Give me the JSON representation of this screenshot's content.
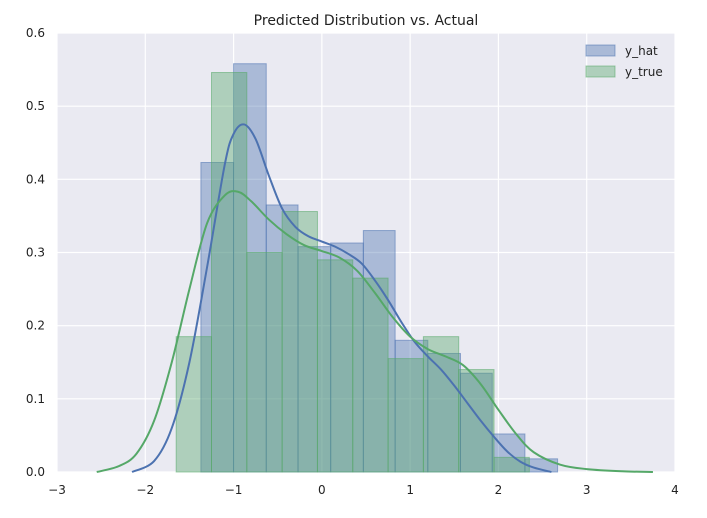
{
  "chart_data": {
    "type": "bar",
    "title": "Predicted Distribution vs. Actual",
    "xlabel": "",
    "ylabel": "",
    "xlim": [
      -3,
      4
    ],
    "ylim": [
      0,
      0.6
    ],
    "xticks": [
      -3,
      -2,
      -1,
      0,
      1,
      2,
      3,
      4
    ],
    "xtick_labels": [
      "−3",
      "−2",
      "−1",
      "0",
      "1",
      "2",
      "3",
      "4"
    ],
    "yticks": [
      0,
      0.1,
      0.2,
      0.3,
      0.4,
      0.5,
      0.6
    ],
    "ytick_labels": [
      "0.0",
      "0.1",
      "0.2",
      "0.3",
      "0.4",
      "0.5",
      "0.6"
    ],
    "grid": true,
    "legend_position": "top-right",
    "series": [
      {
        "name": "y_hat",
        "color": "#4c72b0",
        "bins": [
          {
            "x0": -1.37,
            "x1": -1.0,
            "y": 0.423
          },
          {
            "x0": -1.0,
            "x1": -0.63,
            "y": 0.558
          },
          {
            "x0": -0.63,
            "x1": -0.27,
            "y": 0.365
          },
          {
            "x0": -0.27,
            "x1": 0.1,
            "y": 0.308
          },
          {
            "x0": 0.1,
            "x1": 0.47,
            "y": 0.313
          },
          {
            "x0": 0.47,
            "x1": 0.83,
            "y": 0.33
          },
          {
            "x0": 0.83,
            "x1": 1.2,
            "y": 0.18
          },
          {
            "x0": 1.2,
            "x1": 1.57,
            "y": 0.162
          },
          {
            "x0": 1.57,
            "x1": 1.93,
            "y": 0.135
          },
          {
            "x0": 1.93,
            "x1": 2.3,
            "y": 0.052
          },
          {
            "x0": 2.3,
            "x1": 2.67,
            "y": 0.018
          }
        ],
        "kde": [
          [
            -2.15,
            0.0
          ],
          [
            -1.9,
            0.015
          ],
          [
            -1.7,
            0.06
          ],
          [
            -1.5,
            0.15
          ],
          [
            -1.3,
            0.28
          ],
          [
            -1.1,
            0.42
          ],
          [
            -1.0,
            0.462
          ],
          [
            -0.88,
            0.475
          ],
          [
            -0.75,
            0.455
          ],
          [
            -0.6,
            0.405
          ],
          [
            -0.45,
            0.36
          ],
          [
            -0.3,
            0.335
          ],
          [
            -0.15,
            0.322
          ],
          [
            0.0,
            0.315
          ],
          [
            0.15,
            0.308
          ],
          [
            0.3,
            0.298
          ],
          [
            0.45,
            0.285
          ],
          [
            0.6,
            0.262
          ],
          [
            0.75,
            0.235
          ],
          [
            0.9,
            0.205
          ],
          [
            1.05,
            0.178
          ],
          [
            1.2,
            0.158
          ],
          [
            1.35,
            0.14
          ],
          [
            1.5,
            0.118
          ],
          [
            1.65,
            0.094
          ],
          [
            1.8,
            0.07
          ],
          [
            1.95,
            0.048
          ],
          [
            2.1,
            0.028
          ],
          [
            2.25,
            0.014
          ],
          [
            2.4,
            0.006
          ],
          [
            2.6,
            0.0
          ]
        ]
      },
      {
        "name": "y_true",
        "color": "#55a868",
        "bins": [
          {
            "x0": -1.65,
            "x1": -1.25,
            "y": 0.185
          },
          {
            "x0": -1.25,
            "x1": -0.85,
            "y": 0.546
          },
          {
            "x0": -0.85,
            "x1": -0.45,
            "y": 0.3
          },
          {
            "x0": -0.45,
            "x1": -0.05,
            "y": 0.356
          },
          {
            "x0": -0.05,
            "x1": 0.35,
            "y": 0.29
          },
          {
            "x0": 0.35,
            "x1": 0.75,
            "y": 0.265
          },
          {
            "x0": 0.75,
            "x1": 1.15,
            "y": 0.155
          },
          {
            "x0": 1.15,
            "x1": 1.55,
            "y": 0.185
          },
          {
            "x0": 1.55,
            "x1": 1.95,
            "y": 0.14
          },
          {
            "x0": 1.95,
            "x1": 2.35,
            "y": 0.02
          }
        ],
        "kde": [
          [
            -2.55,
            0.0
          ],
          [
            -2.3,
            0.008
          ],
          [
            -2.1,
            0.025
          ],
          [
            -1.9,
            0.07
          ],
          [
            -1.7,
            0.15
          ],
          [
            -1.5,
            0.25
          ],
          [
            -1.3,
            0.34
          ],
          [
            -1.1,
            0.378
          ],
          [
            -0.95,
            0.383
          ],
          [
            -0.8,
            0.37
          ],
          [
            -0.6,
            0.345
          ],
          [
            -0.4,
            0.325
          ],
          [
            -0.2,
            0.31
          ],
          [
            0.0,
            0.302
          ],
          [
            0.2,
            0.293
          ],
          [
            0.4,
            0.275
          ],
          [
            0.6,
            0.245
          ],
          [
            0.8,
            0.212
          ],
          [
            1.0,
            0.185
          ],
          [
            1.2,
            0.168
          ],
          [
            1.4,
            0.158
          ],
          [
            1.6,
            0.146
          ],
          [
            1.8,
            0.12
          ],
          [
            2.0,
            0.085
          ],
          [
            2.2,
            0.052
          ],
          [
            2.4,
            0.027
          ],
          [
            2.7,
            0.01
          ],
          [
            3.0,
            0.004
          ],
          [
            3.4,
            0.001
          ],
          [
            3.75,
            0.0
          ]
        ]
      }
    ]
  }
}
